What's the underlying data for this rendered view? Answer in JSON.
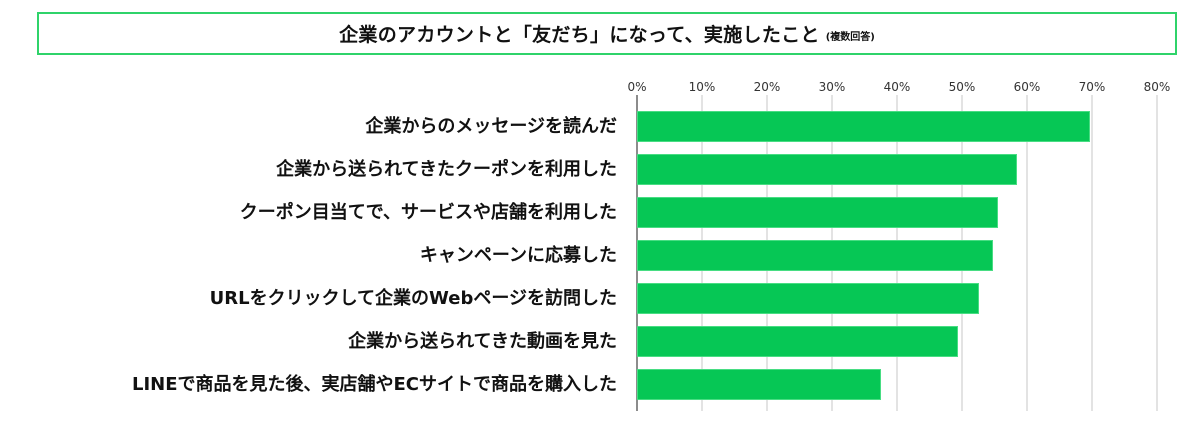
{
  "title": {
    "main": "企業のアカウントと「友だち」になって、実施したこと",
    "note": "(複数回答)"
  },
  "axis": {
    "ticks": [
      "0%",
      "10%",
      "20%",
      "30%",
      "40%",
      "50%",
      "60%",
      "70%",
      "80%"
    ]
  },
  "colors": {
    "bar": "#06c755",
    "title_border": "#2fd36a",
    "grid": "#e3e3e3"
  },
  "chart_data": {
    "type": "bar",
    "orientation": "horizontal",
    "title": "企業のアカウントと「友だち」になって、実施したこと (複数回答)",
    "categories": [
      "企業からのメッセージを読んだ",
      "企業から送られてきたクーポンを利用した",
      "クーポン目当てで、サービスや店舗を利用した",
      "キャンペーンに応募した",
      "URLをクリックして企業のWebページを訪問した",
      "企業から送られてきた動画を見た",
      "LINEで商品を見た後、実店舗やECサイトで商品を購入した"
    ],
    "values": [
      69.7,
      58.5,
      55.5,
      54.8,
      52.6,
      49.4,
      37.5
    ],
    "unit": "%",
    "xlabel": "",
    "ylabel": "",
    "xlim": [
      0,
      80
    ],
    "xticks": [
      "0%",
      "10%",
      "20%",
      "30%",
      "40%",
      "50%",
      "60%",
      "70%",
      "80%"
    ],
    "grid": true,
    "legend": null
  }
}
